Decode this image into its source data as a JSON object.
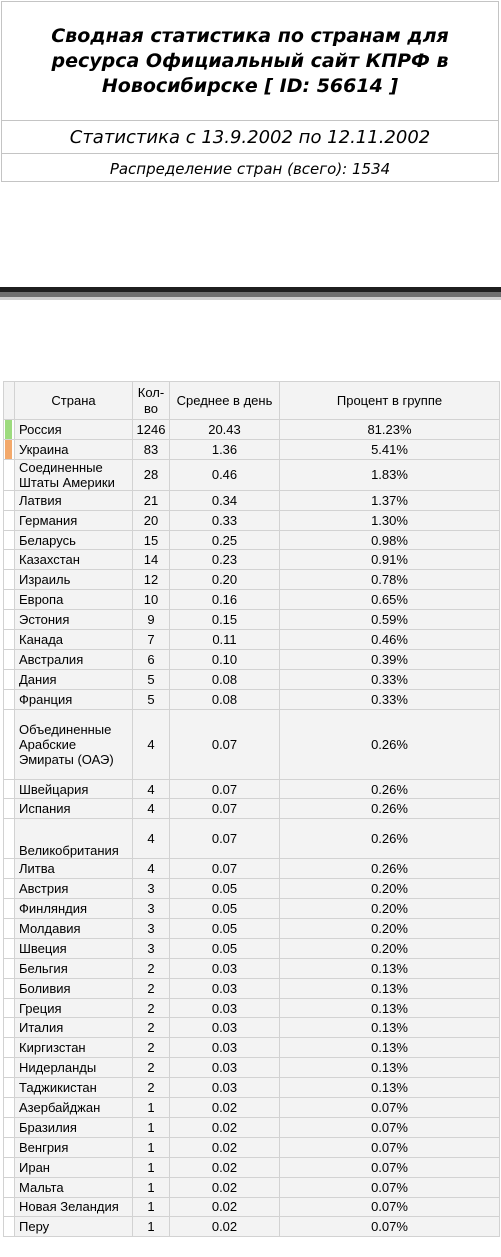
{
  "header": {
    "title": "Сводная статистика по странам для ресурса Официальный сайт КПРФ в Новосибирске [ ID: 56614 ]",
    "period": "Статистика с 13.9.2002 по 12.11.2002",
    "distribution": "Распределение стран (всего): 1534"
  },
  "table": {
    "columns": [
      "Страна",
      "Кол-во",
      "Среднее в день",
      "Процент в группе"
    ],
    "rows": [
      {
        "country": "Россия",
        "count": "1246",
        "avg": "20.43",
        "pct": "81.23%",
        "mark": "#9ddb7e"
      },
      {
        "country": "Украина",
        "count": "83",
        "avg": "1.36",
        "pct": "5.41%",
        "mark": "#f3a96b"
      },
      {
        "country": "Соединенные Штаты Америки",
        "count": "28",
        "avg": "0.46",
        "pct": "1.83%"
      },
      {
        "country": "Латвия",
        "count": "21",
        "avg": "0.34",
        "pct": "1.37%"
      },
      {
        "country": "Германия",
        "count": "20",
        "avg": "0.33",
        "pct": "1.30%"
      },
      {
        "country": "Беларусь",
        "count": "15",
        "avg": "0.25",
        "pct": "0.98%"
      },
      {
        "country": "Казахстан",
        "count": "14",
        "avg": "0.23",
        "pct": "0.91%"
      },
      {
        "country": "Израиль",
        "count": "12",
        "avg": "0.20",
        "pct": "0.78%"
      },
      {
        "country": "Европа",
        "count": "10",
        "avg": "0.16",
        "pct": "0.65%"
      },
      {
        "country": "Эстония",
        "count": "9",
        "avg": "0.15",
        "pct": "0.59%"
      },
      {
        "country": "Канада",
        "count": "7",
        "avg": "0.11",
        "pct": "0.46%"
      },
      {
        "country": "Австралия",
        "count": "6",
        "avg": "0.10",
        "pct": "0.39%"
      },
      {
        "country": "Дания",
        "count": "5",
        "avg": "0.08",
        "pct": "0.33%"
      },
      {
        "country": "Франция",
        "count": "5",
        "avg": "0.08",
        "pct": "0.33%"
      },
      {
        "country": "Объединенные Арабские Эмираты (ОАЭ)",
        "count": "4",
        "avg": "0.07",
        "pct": "0.26%"
      },
      {
        "country": "Швейцария",
        "count": "4",
        "avg": "0.07",
        "pct": "0.26%"
      },
      {
        "country": "Испания",
        "count": "4",
        "avg": "0.07",
        "pct": "0.26%"
      },
      {
        "country": "Великобритания",
        "count": "4",
        "avg": "0.07",
        "pct": "0.26%"
      },
      {
        "country": "Литва",
        "count": "4",
        "avg": "0.07",
        "pct": "0.26%"
      },
      {
        "country": "Австрия",
        "count": "3",
        "avg": "0.05",
        "pct": "0.20%"
      },
      {
        "country": "Финляндия",
        "count": "3",
        "avg": "0.05",
        "pct": "0.20%"
      },
      {
        "country": "Молдавия",
        "count": "3",
        "avg": "0.05",
        "pct": "0.20%"
      },
      {
        "country": "Швеция",
        "count": "3",
        "avg": "0.05",
        "pct": "0.20%"
      },
      {
        "country": "Бельгия",
        "count": "2",
        "avg": "0.03",
        "pct": "0.13%"
      },
      {
        "country": "Боливия",
        "count": "2",
        "avg": "0.03",
        "pct": "0.13%"
      },
      {
        "country": "Греция",
        "count": "2",
        "avg": "0.03",
        "pct": "0.13%"
      },
      {
        "country": "Италия",
        "count": "2",
        "avg": "0.03",
        "pct": "0.13%"
      },
      {
        "country": "Киргизстан",
        "count": "2",
        "avg": "0.03",
        "pct": "0.13%"
      },
      {
        "country": "Нидерланды",
        "count": "2",
        "avg": "0.03",
        "pct": "0.13%"
      },
      {
        "country": "Таджикистан",
        "count": "2",
        "avg": "0.03",
        "pct": "0.13%"
      },
      {
        "country": "Азербайджан",
        "count": "1",
        "avg": "0.02",
        "pct": "0.07%"
      },
      {
        "country": "Бразилия",
        "count": "1",
        "avg": "0.02",
        "pct": "0.07%"
      },
      {
        "country": "Венгрия",
        "count": "1",
        "avg": "0.02",
        "pct": "0.07%"
      },
      {
        "country": "Иран",
        "count": "1",
        "avg": "0.02",
        "pct": "0.07%"
      },
      {
        "country": "Мальта",
        "count": "1",
        "avg": "0.02",
        "pct": "0.07%"
      },
      {
        "country": "Новая Зеландия",
        "count": "1",
        "avg": "0.02",
        "pct": "0.07%"
      },
      {
        "country": "Перу",
        "count": "1",
        "avg": "0.02",
        "pct": "0.07%"
      }
    ]
  }
}
